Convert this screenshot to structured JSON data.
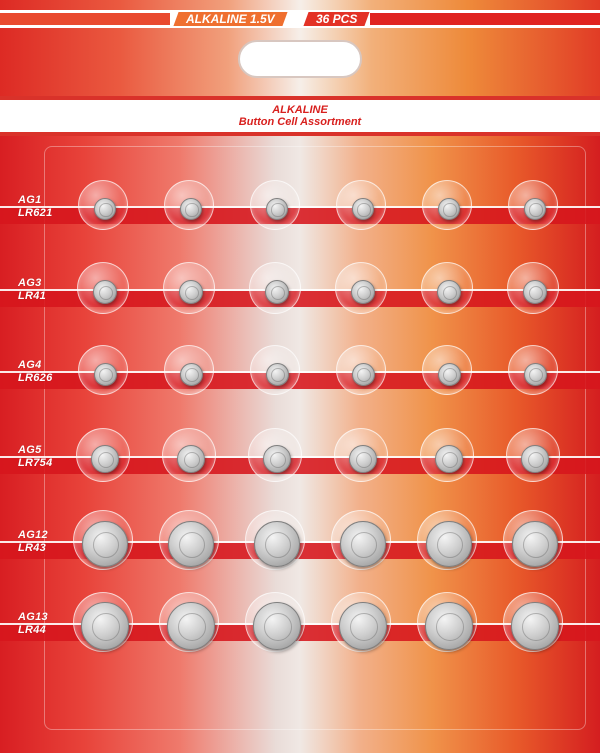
{
  "top_tags": {
    "type": "ALKALINE 1.5V",
    "count": "36 PCS"
  },
  "header": {
    "title": "ALKALINE",
    "subtitle": "Button Cell Assortment"
  },
  "rows": [
    {
      "code": "AG1",
      "iec": "LR621",
      "cells": 6
    },
    {
      "code": "AG3",
      "iec": "LR41",
      "cells": 6
    },
    {
      "code": "AG4",
      "iec": "LR626",
      "cells": 6
    },
    {
      "code": "AG5",
      "iec": "LR754",
      "cells": 6
    },
    {
      "code": "AG12",
      "iec": "LR43",
      "cells": 6
    },
    {
      "code": "AG13",
      "iec": "LR44",
      "cells": 6
    }
  ],
  "colors": {
    "red": "#d81e22",
    "orange": "#ef8a3c",
    "white": "#ffffff"
  }
}
